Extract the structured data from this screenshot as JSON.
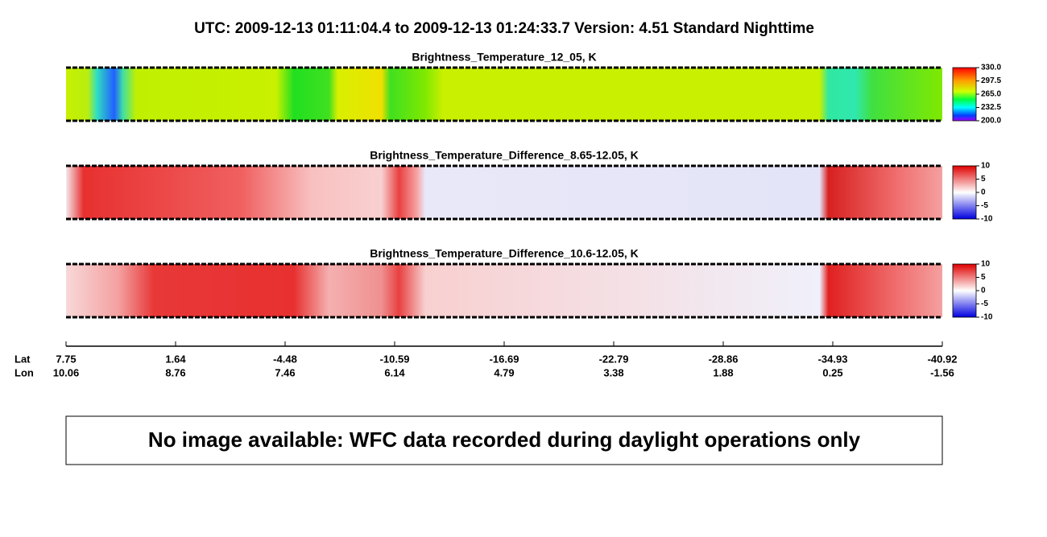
{
  "title": "UTC:  2009-12-13   01:11:04.4  to  2009-12-13   01:24:33.7    Version: 4.51  Standard Nighttime",
  "chart_data": [
    {
      "type": "heatmap",
      "title": "Brightness_Temperature_12_05, K",
      "colormap": "rainbow",
      "zlim": [
        200,
        330
      ],
      "zticks": [
        {
          "value": 330,
          "label": "330.0"
        },
        297.5,
        {
          "value": 265,
          "label": "265.0"
        },
        232.5,
        {
          "value": 200,
          "label": "200.0"
        }
      ]
    },
    {
      "type": "heatmap",
      "title": "Brightness_Temperature_Difference_8.65-12.05, K",
      "colormap": "diverging",
      "zlim": [
        -10,
        10
      ],
      "zticks": [
        10,
        5,
        0,
        -5,
        -10
      ]
    },
    {
      "type": "heatmap",
      "title": "Brightness_Temperature_Difference_10.6-12.05, K",
      "colormap": "diverging",
      "zlim": [
        -10,
        10
      ],
      "zticks": [
        10,
        5,
        0,
        -5,
        -10
      ]
    }
  ],
  "x_axis": {
    "lat_label": "Lat",
    "lon_label": "Lon",
    "lat": [
      7.75,
      1.64,
      -4.48,
      -10.59,
      -16.69,
      -22.79,
      -28.86,
      -34.93,
      -40.92
    ],
    "lon": [
      10.06,
      8.76,
      7.46,
      6.14,
      4.79,
      3.38,
      1.88,
      0.25,
      -1.56
    ]
  },
  "message": "No image available: WFC data recorded during daylight operations only"
}
